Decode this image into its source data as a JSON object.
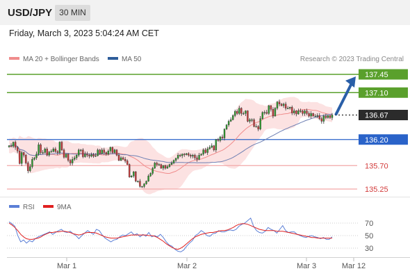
{
  "header": {
    "symbol": "USD/JPY",
    "timeframe": "30 MIN",
    "datetime": "Friday, March 3, 2023 5:04:24 AM CET"
  },
  "legend": {
    "ma20_label": "MA 20 + Bollinger Bands",
    "ma50_label": "MA 50",
    "credit": "Research © 2023 Trading Central",
    "ma20_color": "#f08c8c",
    "ma50_color": "#2e5d9a"
  },
  "rsi_legend": {
    "rsi_label": "RSI",
    "ma9_label": "9MA",
    "rsi_color": "#5b7fd6",
    "ma9_color": "#e02020"
  },
  "chart_data": {
    "type": "candlestick",
    "x_ticks": [
      "Mar 1",
      "Mar 2",
      "Mar 3",
      "Mar 12"
    ],
    "ylim": [
      135.05,
      137.55
    ],
    "candle_sample": [
      136.08,
      136.07,
      136.15,
      136.05,
      135.98,
      135.74,
      135.95,
      135.9,
      135.75,
      135.6,
      135.68,
      135.82,
      135.85,
      135.92,
      136.1,
      135.95,
      135.95,
      136.02,
      135.9,
      135.96,
      135.97,
      136.02,
      135.97,
      135.95,
      136.15,
      136.0,
      135.86,
      135.92,
      135.8,
      135.75,
      135.82,
      135.85,
      135.9,
      136.0,
      136.0,
      135.87,
      135.92,
      135.9,
      135.88,
      135.91,
      135.88,
      135.89,
      136.0,
      135.93,
      136.0,
      135.95,
      135.92,
      135.98,
      136.05,
      135.95,
      136.0,
      135.9,
      135.8,
      135.85,
      135.82,
      135.79,
      135.72,
      135.48,
      135.5,
      135.58,
      135.4,
      135.4,
      135.3,
      135.3,
      135.35,
      135.4,
      135.5,
      135.55,
      135.65,
      135.75,
      135.72,
      135.72,
      135.65,
      135.7,
      135.65,
      135.68,
      135.72,
      135.75,
      135.8,
      135.84,
      135.9,
      135.89,
      135.92,
      135.91,
      135.93,
      135.9,
      135.88,
      135.9,
      135.85,
      135.82,
      135.9,
      135.92,
      136.0,
      135.95,
      136.02,
      136.05,
      136.08,
      136.0,
      136.2,
      136.18,
      136.25,
      136.23,
      136.4,
      136.48,
      136.55,
      136.58,
      136.66,
      136.74,
      136.7,
      136.8,
      136.7,
      136.7,
      136.75,
      136.55,
      136.58,
      136.58,
      136.45,
      136.45,
      136.4,
      136.6,
      136.72,
      136.72,
      136.7,
      136.85,
      136.78,
      136.65,
      136.8,
      136.92,
      136.88,
      136.85,
      136.88,
      136.8,
      136.8,
      136.82,
      136.71,
      136.75,
      136.69,
      136.75,
      136.75,
      136.7,
      136.75,
      136.7,
      136.65,
      136.7,
      136.65,
      136.65,
      136.66,
      136.6,
      136.55,
      136.65,
      136.62,
      136.66,
      136.62,
      136.67
    ],
    "last_price": 136.67,
    "levels": [
      {
        "value": "137.45",
        "type": "resistance"
      },
      {
        "value": "137.10",
        "type": "resistance"
      },
      {
        "value": "136.20",
        "type": "pivot"
      },
      {
        "value": "135.70",
        "type": "support"
      },
      {
        "value": "135.25",
        "type": "support"
      }
    ],
    "target_arrow": {
      "from": 136.67,
      "to": 137.45
    },
    "rsi": {
      "ylim": [
        20,
        80
      ],
      "ticks": [
        "70",
        "50",
        "30"
      ],
      "values": [
        72,
        69,
        65,
        50,
        40,
        43,
        38,
        42,
        40,
        45,
        48,
        50,
        52,
        54,
        56,
        52,
        55,
        58,
        60,
        56,
        55,
        57,
        53,
        50,
        45,
        50,
        54,
        58,
        55,
        52,
        60,
        58,
        51,
        46,
        43,
        40,
        43,
        44,
        48,
        51,
        50,
        53,
        56,
        51,
        53,
        48,
        52,
        49,
        55,
        48,
        50,
        48,
        52,
        47,
        40,
        35,
        33,
        28,
        25,
        24,
        27,
        33,
        38,
        42,
        50,
        53,
        58,
        55,
        50,
        49,
        53,
        54,
        58,
        56,
        56,
        58,
        59,
        58,
        60,
        65,
        68,
        70,
        74,
        78,
        65,
        58,
        55,
        54,
        57,
        63,
        60,
        58,
        54,
        60,
        66,
        58,
        55,
        56,
        56,
        52,
        50,
        48,
        47,
        49,
        50,
        48,
        47,
        45,
        47,
        44,
        44,
        48
      ],
      "ma9": [
        70,
        67,
        63,
        58,
        52,
        48,
        45,
        44,
        44,
        45,
        46,
        48,
        51,
        53,
        55,
        55,
        56,
        56,
        57,
        57,
        56,
        55,
        53,
        52,
        51,
        52,
        54,
        55,
        55,
        55,
        54,
        52,
        50,
        48,
        47,
        46,
        46,
        46,
        47,
        48,
        49,
        50,
        51,
        51,
        51,
        51,
        51,
        51,
        50,
        50,
        49,
        47,
        44,
        41,
        37,
        34,
        31,
        29,
        28,
        30,
        33,
        37,
        41,
        45,
        48,
        50,
        52,
        53,
        54,
        55,
        55,
        56,
        57,
        58,
        58,
        59,
        61,
        63,
        66,
        68,
        69,
        69,
        68,
        66,
        64,
        62,
        60,
        59,
        58,
        58,
        58,
        58,
        57,
        57,
        57,
        56,
        55,
        54,
        53,
        52,
        51,
        50,
        49,
        48,
        47,
        47,
        46,
        46,
        46,
        46,
        46,
        46
      ]
    }
  }
}
